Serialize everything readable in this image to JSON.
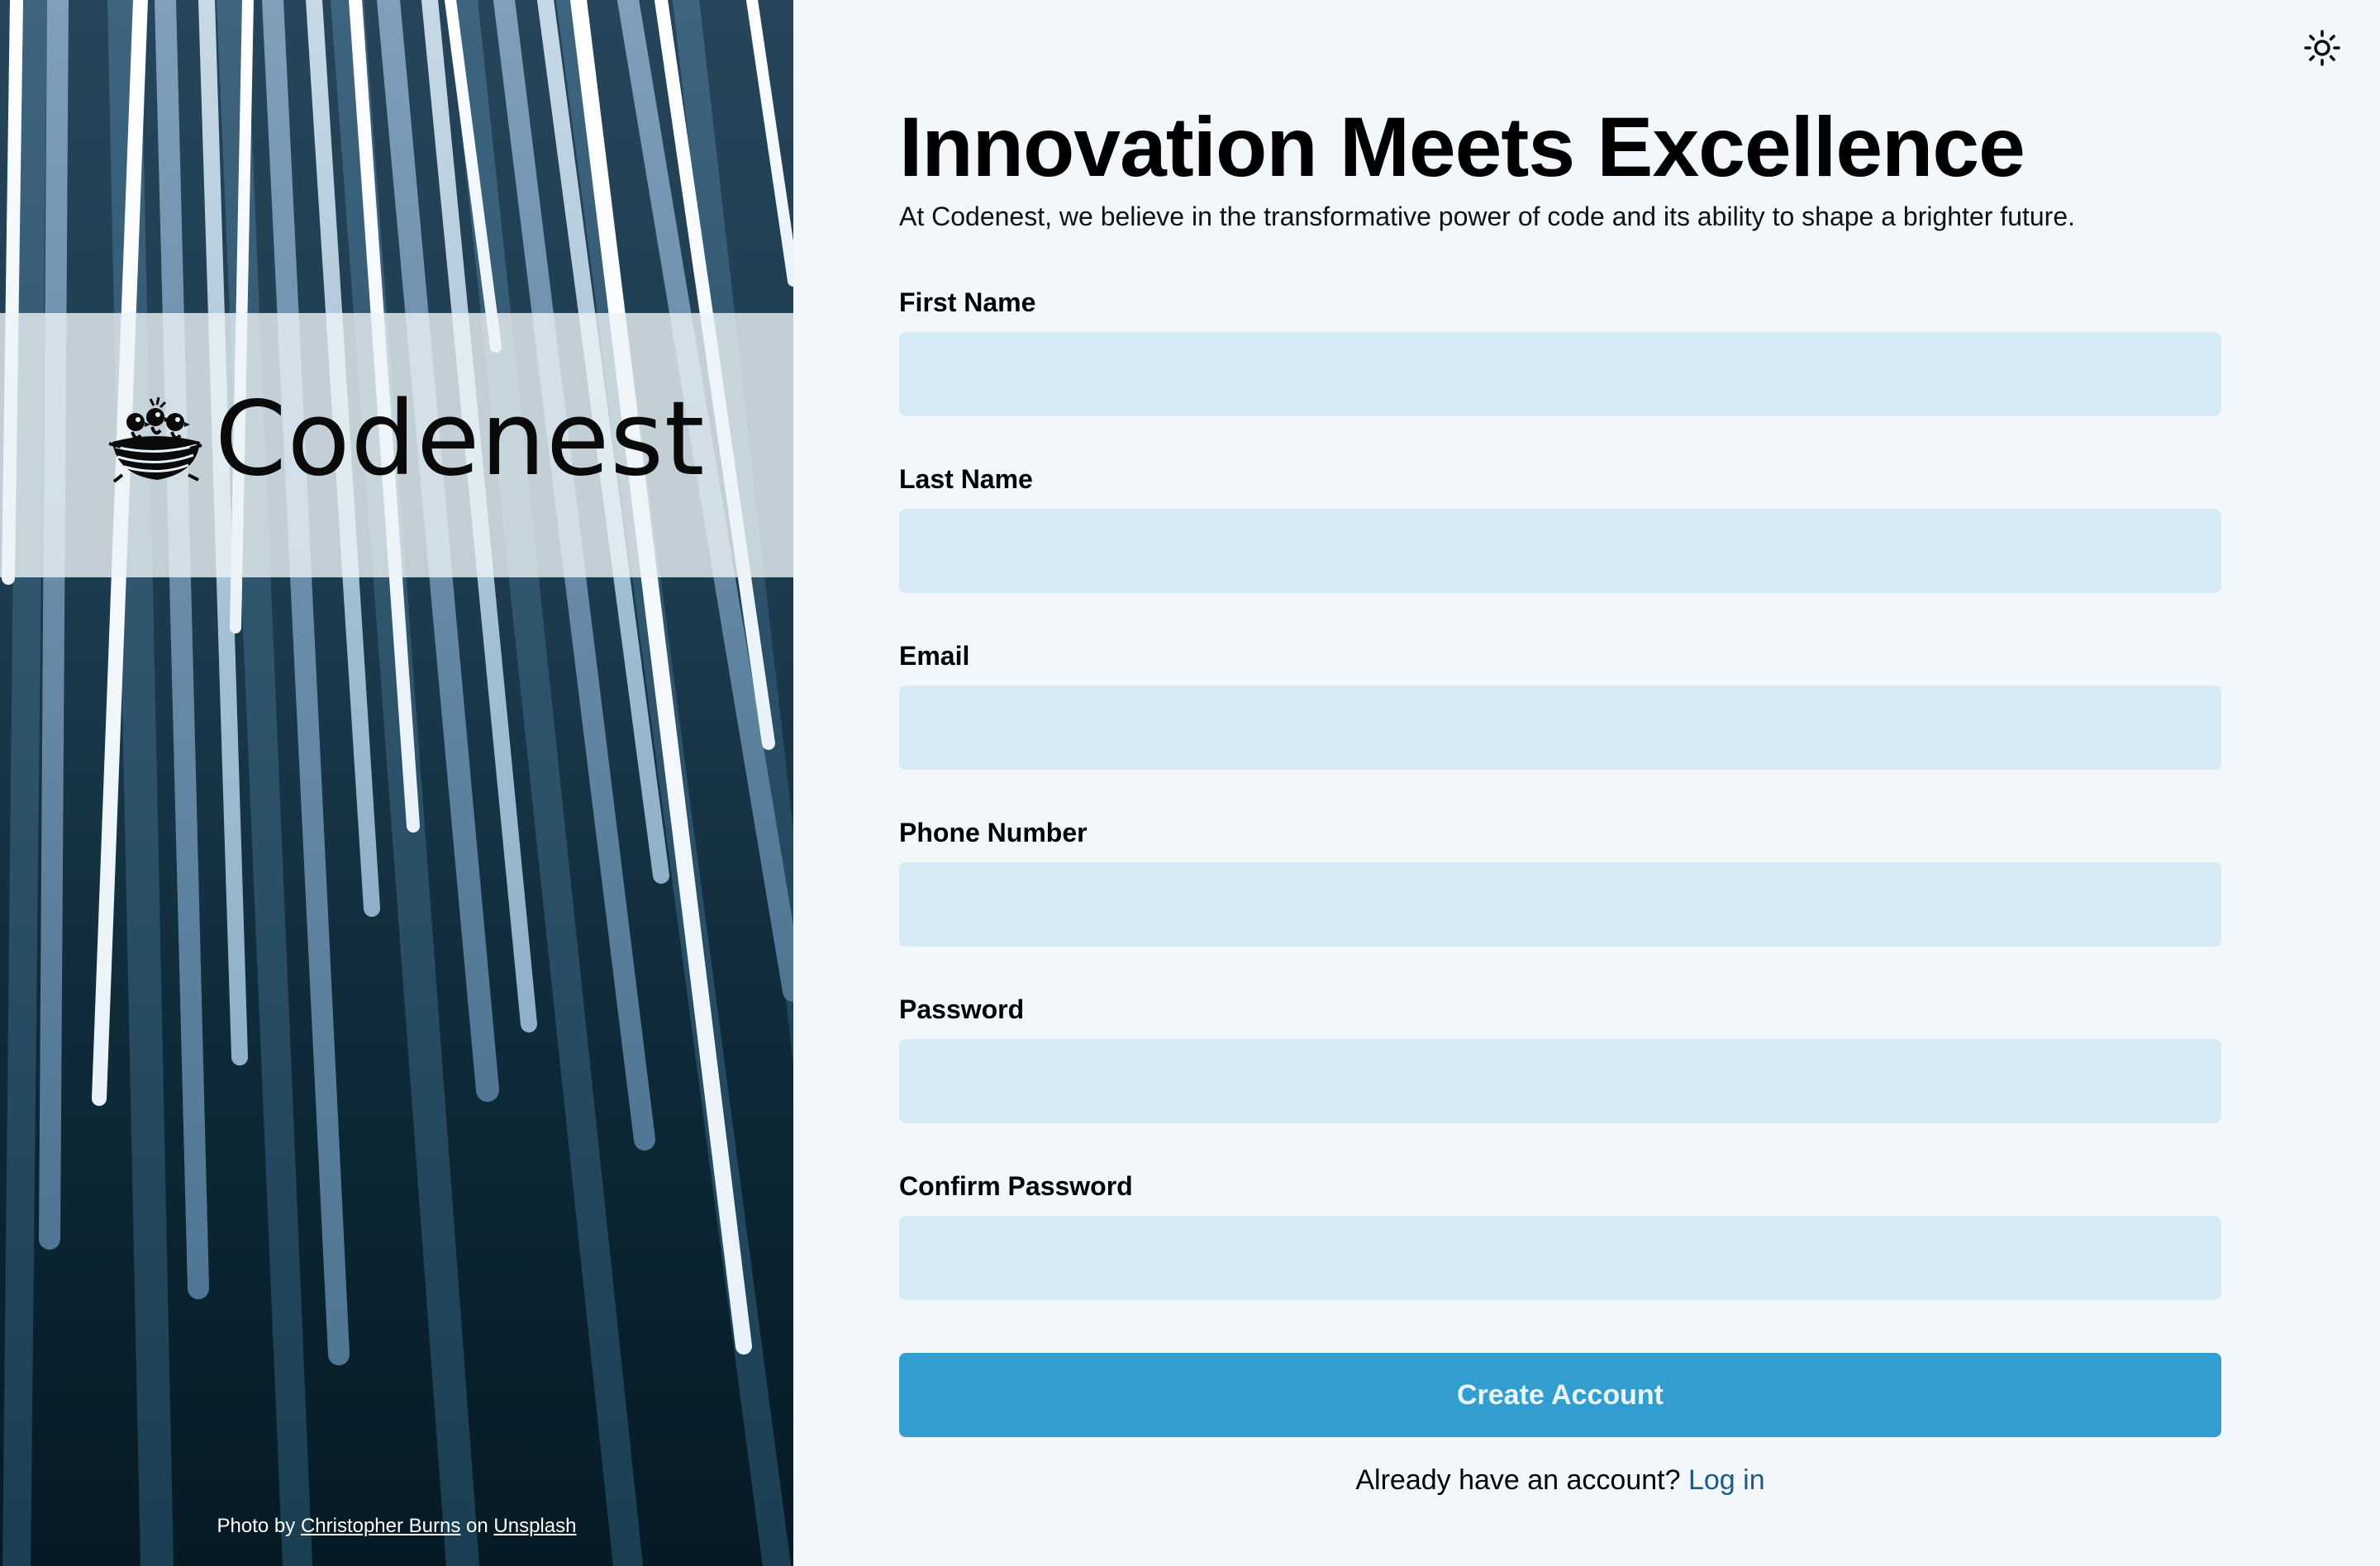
{
  "brand": {
    "name": "Codenest",
    "logo_icon": "nest-icon"
  },
  "photo_credit": {
    "prefix": "Photo by",
    "author": "Christopher Burns",
    "joiner": "on",
    "source": "Unsplash"
  },
  "theme_toggle": {
    "icon": "sun-icon"
  },
  "header": {
    "title": "Innovation Meets Excellence",
    "subtitle": "At Codenest, we believe in the transformative power of code and its ability to shape a brighter future."
  },
  "form": {
    "fields": [
      {
        "label": "First Name",
        "value": "",
        "placeholder": ""
      },
      {
        "label": "Last Name",
        "value": "",
        "placeholder": ""
      },
      {
        "label": "Email",
        "value": "",
        "placeholder": ""
      },
      {
        "label": "Phone Number",
        "value": "",
        "placeholder": ""
      },
      {
        "label": "Password",
        "value": "",
        "placeholder": ""
      },
      {
        "label": "Confirm Password",
        "value": "",
        "placeholder": ""
      }
    ],
    "submit_label": "Create Account",
    "login_prompt": "Already have an account?",
    "login_link": "Log in"
  },
  "colors": {
    "background": "#f2f7fb",
    "input_background": "#d6eaf5",
    "button_background": "#329ed0",
    "button_text": "#e9f5fc",
    "link": "#1f5a85"
  }
}
